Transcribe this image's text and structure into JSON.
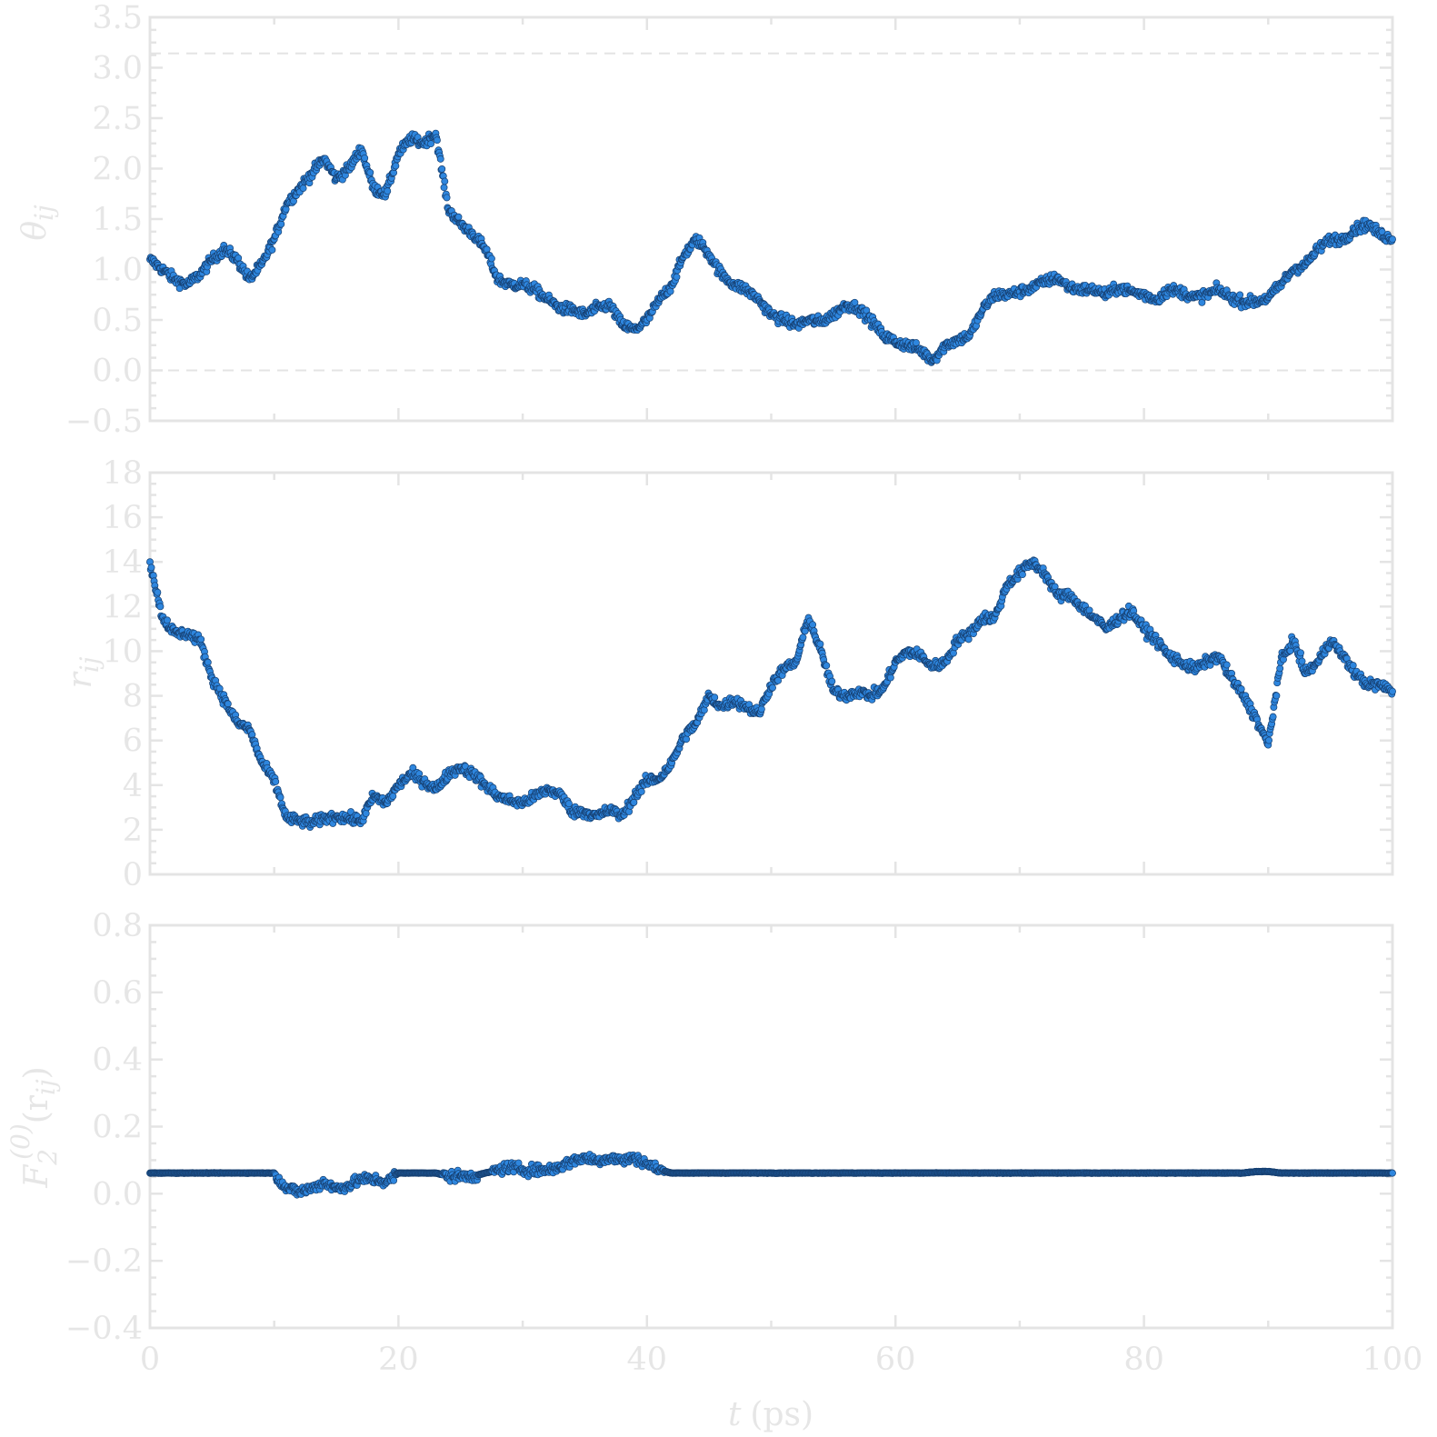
{
  "chart_data": [
    {
      "type": "scatter",
      "ylabel": "θ",
      "ylabel_sub": "ij",
      "ylim": [
        -0.5,
        3.5
      ],
      "yticks": [
        "−0.5",
        "0.0",
        "0.5",
        "1.0",
        "1.5",
        "2.0",
        "2.5",
        "3.0",
        "3.5"
      ],
      "xlim": [
        0,
        100
      ],
      "reference_lines": [
        0.0,
        3.14159
      ],
      "series": [
        {
          "color": "#2e86de",
          "x": [
            0,
            1,
            2,
            3,
            4,
            5,
            6,
            7,
            8,
            9,
            10,
            11,
            12,
            13,
            14,
            15,
            16,
            17,
            18,
            19,
            20,
            21,
            22,
            23,
            24,
            25,
            26,
            27,
            28,
            29,
            30,
            31,
            32,
            33,
            34,
            35,
            36,
            37,
            38,
            39,
            40,
            41,
            42,
            43,
            44,
            45,
            46,
            47,
            48,
            49,
            50,
            51,
            52,
            53,
            54,
            55,
            56,
            57,
            58,
            59,
            60,
            61,
            62,
            63,
            64,
            65,
            66,
            67,
            68,
            69,
            70,
            71,
            72,
            73,
            74,
            75,
            76,
            77,
            78,
            79,
            80,
            81,
            82,
            83,
            84,
            85,
            86,
            87,
            88,
            89,
            90,
            91,
            92,
            93,
            94,
            95,
            96,
            97,
            98,
            99,
            100
          ],
          "y": [
            1.1,
            1.0,
            0.9,
            0.85,
            0.95,
            1.1,
            1.2,
            1.1,
            0.9,
            1.05,
            1.3,
            1.65,
            1.8,
            1.95,
            2.1,
            1.9,
            2.0,
            2.2,
            1.8,
            1.75,
            2.15,
            2.3,
            2.25,
            2.35,
            1.6,
            1.45,
            1.35,
            1.2,
            0.9,
            0.85,
            0.85,
            0.8,
            0.7,
            0.62,
            0.6,
            0.55,
            0.62,
            0.65,
            0.45,
            0.4,
            0.5,
            0.7,
            0.85,
            1.15,
            1.3,
            1.15,
            0.95,
            0.85,
            0.8,
            0.7,
            0.55,
            0.5,
            0.45,
            0.5,
            0.48,
            0.55,
            0.65,
            0.62,
            0.5,
            0.35,
            0.28,
            0.25,
            0.2,
            0.1,
            0.25,
            0.3,
            0.35,
            0.6,
            0.75,
            0.75,
            0.78,
            0.82,
            0.88,
            0.92,
            0.82,
            0.8,
            0.8,
            0.75,
            0.82,
            0.78,
            0.75,
            0.7,
            0.8,
            0.78,
            0.72,
            0.75,
            0.8,
            0.72,
            0.68,
            0.68,
            0.72,
            0.85,
            1.0,
            1.05,
            1.2,
            1.3,
            1.3,
            1.4,
            1.45,
            1.35,
            1.3
          ]
        }
      ]
    },
    {
      "type": "scatter",
      "ylabel": "r",
      "ylabel_sub": "ij",
      "ylim": [
        0,
        18
      ],
      "yticks": [
        "0",
        "2",
        "4",
        "6",
        "8",
        "10",
        "12",
        "14",
        "16",
        "18"
      ],
      "xlim": [
        0,
        100
      ],
      "series": [
        {
          "color": "#2e86de",
          "x": [
            0,
            1,
            2,
            3,
            4,
            5,
            6,
            7,
            8,
            9,
            10,
            11,
            12,
            13,
            14,
            15,
            16,
            17,
            18,
            19,
            20,
            21,
            22,
            23,
            24,
            25,
            26,
            27,
            28,
            29,
            30,
            31,
            32,
            33,
            34,
            35,
            36,
            37,
            38,
            39,
            40,
            41,
            42,
            43,
            44,
            45,
            46,
            47,
            48,
            49,
            50,
            51,
            52,
            53,
            54,
            55,
            56,
            57,
            58,
            59,
            60,
            61,
            62,
            63,
            64,
            65,
            66,
            67,
            68,
            69,
            70,
            71,
            72,
            73,
            74,
            75,
            76,
            77,
            78,
            79,
            80,
            81,
            82,
            83,
            84,
            85,
            86,
            87,
            88,
            89,
            90,
            91,
            92,
            93,
            94,
            95,
            96,
            97,
            98,
            99,
            100
          ],
          "y": [
            14.0,
            11.5,
            10.8,
            10.8,
            10.5,
            8.8,
            7.8,
            6.8,
            6.5,
            5.0,
            4.2,
            2.5,
            2.4,
            2.3,
            2.5,
            2.6,
            2.5,
            2.4,
            3.5,
            3.2,
            4.0,
            4.5,
            4.2,
            3.8,
            4.5,
            4.8,
            4.5,
            4.0,
            3.5,
            3.3,
            3.2,
            3.5,
            3.8,
            3.6,
            2.8,
            2.8,
            2.6,
            2.9,
            2.6,
            3.5,
            4.2,
            4.3,
            5.0,
            6.2,
            6.8,
            8.0,
            7.5,
            7.8,
            7.5,
            7.2,
            8.5,
            9.2,
            9.5,
            11.5,
            10.0,
            8.2,
            8.0,
            8.2,
            8.0,
            8.3,
            9.5,
            10.0,
            9.8,
            9.3,
            9.5,
            10.5,
            10.8,
            11.5,
            11.5,
            13.0,
            13.5,
            14.0,
            13.5,
            12.5,
            12.5,
            12.0,
            11.5,
            11.0,
            11.5,
            11.8,
            11.0,
            10.5,
            9.8,
            9.5,
            9.2,
            9.5,
            9.8,
            8.8,
            8.0,
            7.0,
            5.8,
            9.5,
            10.5,
            9.0,
            9.5,
            10.5,
            9.8,
            9.0,
            8.5,
            8.5,
            8.2
          ]
        }
      ]
    },
    {
      "type": "scatter",
      "ylabel": "F",
      "ylabel_sub": "2",
      "ylabel_sup": "(0)",
      "ylabel_arg": "(r",
      "ylabel_arg_sub": "ij",
      "ylabel_close": ")",
      "ylim": [
        -0.5,
        0.8
      ],
      "yticks": [
        "−0.4",
        "−0.2",
        "0.0",
        "0.2",
        "0.4",
        "0.6",
        "0.8"
      ],
      "xlim": [
        0,
        100
      ],
      "xticks": [
        "0",
        "20",
        "40",
        "60",
        "80",
        "100"
      ],
      "xlabel": "t",
      "xlabel_unit": "(ps)",
      "series": [
        {
          "color": "#2e86de",
          "x": [
            0,
            1,
            2,
            3,
            4,
            5,
            6,
            7,
            8,
            9,
            10,
            11,
            12,
            13,
            14,
            15,
            16,
            17,
            18,
            19,
            20,
            21,
            22,
            23,
            24,
            25,
            26,
            27,
            28,
            29,
            30,
            31,
            32,
            33,
            34,
            35,
            36,
            37,
            38,
            39,
            40,
            41,
            42,
            43,
            44,
            45,
            46,
            47,
            48,
            49,
            50,
            51,
            52,
            53,
            54,
            55,
            56,
            57,
            58,
            59,
            60,
            61,
            62,
            63,
            64,
            65,
            66,
            67,
            68,
            69,
            70,
            71,
            72,
            73,
            74,
            75,
            76,
            77,
            78,
            79,
            80,
            81,
            82,
            83,
            84,
            85,
            86,
            87,
            88,
            89,
            90,
            91,
            92,
            93,
            94,
            95,
            96,
            97,
            98,
            99,
            100
          ],
          "y": [
            0.0,
            0.0,
            0.0,
            0.0,
            0.0,
            0.0,
            0.0,
            0.0,
            0.0,
            0.0,
            0.0,
            -0.05,
            -0.06,
            -0.05,
            -0.03,
            -0.05,
            -0.04,
            -0.02,
            -0.02,
            -0.03,
            0.0,
            0.0,
            0.0,
            0.0,
            -0.01,
            -0.01,
            -0.01,
            0.0,
            0.01,
            0.02,
            0.01,
            0.01,
            0.01,
            0.02,
            0.04,
            0.05,
            0.04,
            0.05,
            0.04,
            0.05,
            0.03,
            0.01,
            0.0,
            0.0,
            0.0,
            0.0,
            0.0,
            0.0,
            0.0,
            0.0,
            0.0,
            0.0,
            0.0,
            0.0,
            0.0,
            0.0,
            0.0,
            0.0,
            0.0,
            0.0,
            0.0,
            0.0,
            0.0,
            0.0,
            0.0,
            0.0,
            0.0,
            0.0,
            0.0,
            0.0,
            0.0,
            0.0,
            0.0,
            0.0,
            0.0,
            0.0,
            0.0,
            0.0,
            0.0,
            0.0,
            0.0,
            0.0,
            0.0,
            0.0,
            0.0,
            0.0,
            0.0,
            0.0,
            0.0,
            0.005,
            0.005,
            0.0,
            0.0,
            0.0,
            0.0,
            0.0,
            0.0,
            0.0,
            0.0,
            0.0,
            0.0
          ]
        }
      ]
    }
  ]
}
